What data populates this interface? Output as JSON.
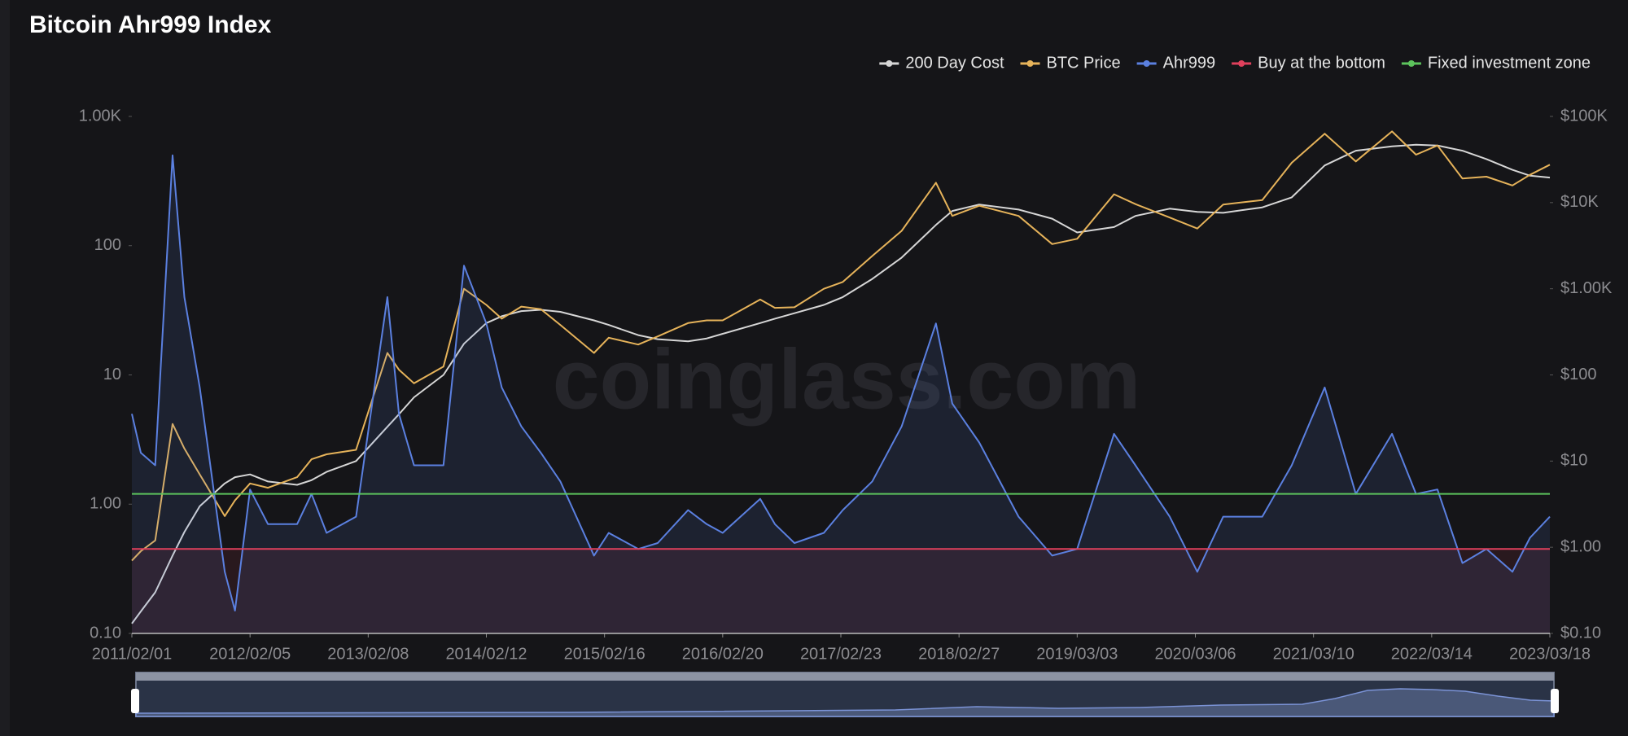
{
  "chart_data": {
    "type": "line",
    "title": "Bitcoin Ahr999 Index",
    "watermark": "coinglass.com",
    "log_scale": true,
    "legend": "top-right",
    "x": [
      "2011/02/01",
      "2011/03/01",
      "2011/04/15",
      "2011/06/08",
      "2011/07/15",
      "2011/09/01",
      "2011/11/18",
      "2011/12/20",
      "2012/02/05",
      "2012/04/01",
      "2012/07/01",
      "2012/08/15",
      "2012/10/01",
      "2013/01/01",
      "2013/04/09",
      "2013/05/15",
      "2013/07/01",
      "2013/10/01",
      "2013/12/04",
      "2014/02/12",
      "2014/04/01",
      "2014/06/01",
      "2014/08/01",
      "2014/10/01",
      "2015/01/14",
      "2015/03/01",
      "2015/06/01",
      "2015/08/01",
      "2015/11/04",
      "2016/01/01",
      "2016/02/20",
      "2016/06/16",
      "2016/08/01",
      "2016/10/01",
      "2017/01/01",
      "2017/03/01",
      "2017/06/01",
      "2017/09/01",
      "2017/12/17",
      "2018/02/06",
      "2018/05/01",
      "2018/09/01",
      "2018/12/15",
      "2019/03/03",
      "2019/06/26",
      "2019/09/01",
      "2019/12/17",
      "2020/03/12",
      "2020/06/01",
      "2020/10/01",
      "2021/01/01",
      "2021/04/14",
      "2021/07/20",
      "2021/11/10",
      "2022/01/24",
      "2022/04/01",
      "2022/06/18",
      "2022/09/01",
      "2022/11/21",
      "2023/01/15",
      "2023/03/18"
    ],
    "xlim": [
      "2011/02/01",
      "2023/03/18"
    ],
    "xticks": [
      "2011/02/01",
      "2012/02/05",
      "2013/02/08",
      "2014/02/12",
      "2015/02/16",
      "2016/02/20",
      "2017/02/23",
      "2018/02/27",
      "2019/03/03",
      "2020/03/06",
      "2021/03/10",
      "2022/03/14",
      "2023/03/18"
    ],
    "ylim": [
      0.1,
      1000
    ],
    "yticks": [
      {
        "value": 0.1,
        "label": "0.10"
      },
      {
        "value": 1,
        "label": "1.00"
      },
      10,
      100,
      {
        "value": 1000,
        "label": "1.00K"
      }
    ],
    "y2lim": [
      0.1,
      100000
    ],
    "y2ticks": [
      {
        "value": 0.1,
        "label": "$0.10"
      },
      {
        "value": 1,
        "label": "$1.00"
      },
      {
        "value": 10,
        "label": "$10"
      },
      {
        "value": 100,
        "label": "$100"
      },
      {
        "value": 1000,
        "label": "$1.00K"
      },
      {
        "value": 10000,
        "label": "$10K"
      },
      {
        "value": 100000,
        "label": "$100K"
      }
    ],
    "series": [
      {
        "name": "200 Day Cost",
        "color": "#d6d6d6",
        "axis": "y2",
        "values": [
          0.13,
          0.18,
          0.3,
          0.8,
          1.5,
          3,
          5.5,
          6.5,
          7,
          5.8,
          5.3,
          6,
          7.5,
          10,
          25,
          35,
          55,
          100,
          230,
          400,
          480,
          550,
          570,
          540,
          430,
          380,
          290,
          260,
          245,
          265,
          300,
          400,
          450,
          520,
          650,
          800,
          1300,
          2300,
          5500,
          8000,
          9500,
          8300,
          6500,
          4500,
          5200,
          7000,
          8500,
          7800,
          7600,
          8800,
          11500,
          27000,
          40000,
          45000,
          47000,
          46000,
          40000,
          32000,
          24000,
          20500,
          19500
        ]
      },
      {
        "name": "BTC Price",
        "color": "#e6b35a",
        "axis": "y2",
        "values": [
          0.7,
          0.9,
          1.2,
          27,
          14,
          7,
          2.3,
          3.5,
          5.5,
          4.9,
          6.5,
          10.5,
          12,
          13.5,
          180,
          115,
          80,
          125,
          1000,
          650,
          450,
          620,
          580,
          380,
          180,
          270,
          225,
          280,
          400,
          430,
          430,
          750,
          600,
          610,
          1000,
          1200,
          2400,
          4700,
          17000,
          7000,
          9200,
          7000,
          3300,
          3800,
          12500,
          9600,
          6700,
          5000,
          9500,
          10700,
          29000,
          63000,
          30000,
          67000,
          36000,
          46000,
          19000,
          20000,
          15800,
          21000,
          27500
        ]
      },
      {
        "name": "Ahr999",
        "color": "#5b80e0",
        "values": [
          5,
          2.5,
          2,
          500,
          40,
          8,
          0.3,
          0.15,
          1.3,
          0.7,
          0.7,
          1.2,
          0.6,
          0.8,
          40,
          5,
          2,
          2,
          70,
          25,
          8,
          4,
          2.5,
          1.5,
          0.4,
          0.6,
          0.45,
          0.5,
          0.9,
          0.7,
          0.6,
          1.1,
          0.7,
          0.5,
          0.6,
          0.9,
          1.5,
          4,
          25,
          6,
          3,
          0.8,
          0.4,
          0.45,
          3.5,
          2,
          0.8,
          0.3,
          0.8,
          0.8,
          2,
          8,
          1.2,
          3.5,
          1.2,
          1.3,
          0.35,
          0.45,
          0.3,
          0.55,
          0.8
        ]
      },
      {
        "name": "Buy at the bottom",
        "color": "#e0405c",
        "value": 0.45
      },
      {
        "name": "Fixed investment zone",
        "color": "#5cc35c",
        "value": 1.2
      }
    ]
  }
}
